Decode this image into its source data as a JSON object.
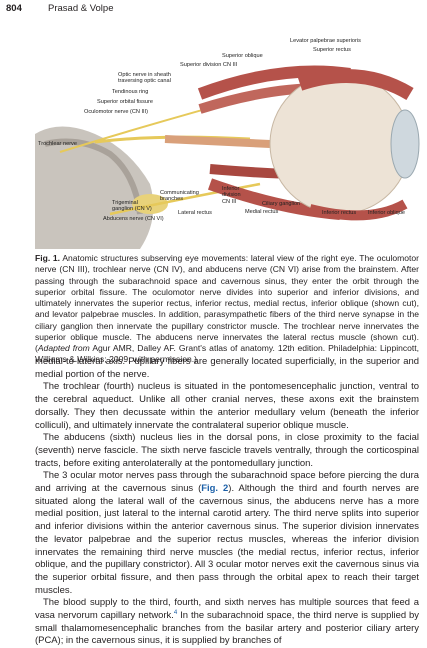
{
  "header": {
    "page_number": "804",
    "running_head": "Prasad & Volpe"
  },
  "figure": {
    "labels": [
      "Levator palpebrae superioris",
      "Superior rectus",
      "Superior oblique",
      "Superior division CN III",
      "Optic nerve in sheath traversing optic canal",
      "Tendinous ring",
      "Superior orbital fissure",
      "Oculomotor nerve (CN III)",
      "Trochlear nerve",
      "Communicating branches",
      "Trigeminal ganglion (CN V)",
      "Abducens nerve (CN VI)",
      "Lateral rectus",
      "Inferior division CN III",
      "Ciliary ganglion",
      "Medial rectus",
      "Inferior rectus",
      "Inferior oblique"
    ],
    "caption": {
      "label": "Fig. 1.",
      "text": "Anatomic structures subserving eye movements: lateral view of the right eye. The oculomotor nerve (CN III), trochlear nerve (CN IV), and abducens nerve (CN VI) arise from the brainstem. After passing through the subarachnoid space and cavernous sinus, they enter the orbit through the superior orbital fissure. The oculomotor nerve divides into superior and inferior divisions, and ultimately innervates the superior rectus, inferior rectus, medial rectus, inferior oblique (shown cut), and levator palpebrae muscles. In addition, parasympathetic fibers of the third nerve synapse in the ciliary ganglion then innervate the pupillary constrictor muscle. The trochlear nerve innervates the superior oblique muscle. The abducens nerve innervates the lateral rectus muscle (shown cut). (",
      "source_italic": "Adapted from",
      "source_rest": " Agur AMR, Dalley AF. Grant's atlas of anatomy. 12th edition. Philadelphia: Lippincott, Williams & Wilkins; 2009; with permission.)"
    }
  },
  "body": {
    "paragraphs": [
      {
        "text": "medial-to-lateral axis. Pupillary fibers are generally located superficially, in the superior and medial portion of the nerve."
      },
      {
        "text": "The trochlear (fourth) nucleus is situated in the pontomesencephalic junction, ventral to the cerebral aqueduct. Unlike all other cranial nerves, these axons exit the brainstem dorsally. They then decussate within the anterior medullary velum (beneath the inferior colliculi), and ultimately innervate the contralateral superior oblique muscle."
      },
      {
        "text": "The abducens (sixth) nucleus lies in the dorsal pons, in close proximity to the facial (seventh) nerve fascicle. The sixth nerve fascicle travels ventrally, through the corticospinal tracts, before exiting anterolaterally at the pontomedullary junction."
      },
      {
        "before": "The 3 ocular motor nerves pass through the subarachnoid space before piercing the dura and arriving at the cavernous sinus (",
        "link": "Fig. 2",
        "after": "). Although the third and fourth nerves are situated along the lateral wall of the cavernous sinus, the abducens nerve has a more medial position, just lateral to the internal carotid artery. The third nerve splits into superior and inferior divisions within the anterior cavernous sinus. The superior division innervates the levator palpebrae and the superior rectus muscles, whereas the inferior division innervates the remaining third nerve muscles (the medial rectus, inferior rectus, inferior oblique, and the pupillary constrictor). All 3 ocular motor nerves exit the cavernous sinus via the superior orbital fissure, and then pass through the orbital apex to reach their target muscles."
      },
      {
        "before": "The blood supply to the third, fourth, and sixth nerves has multiple sources that feed a vasa nervorum capillary network.",
        "ref": "4",
        "after": " In the subarachnoid space, the third nerve is supplied by small thalamomesencephalic branches from the basilar artery and posterior ciliary artery (PCA); in the cavernous sinus, it is supplied by branches of"
      }
    ]
  }
}
